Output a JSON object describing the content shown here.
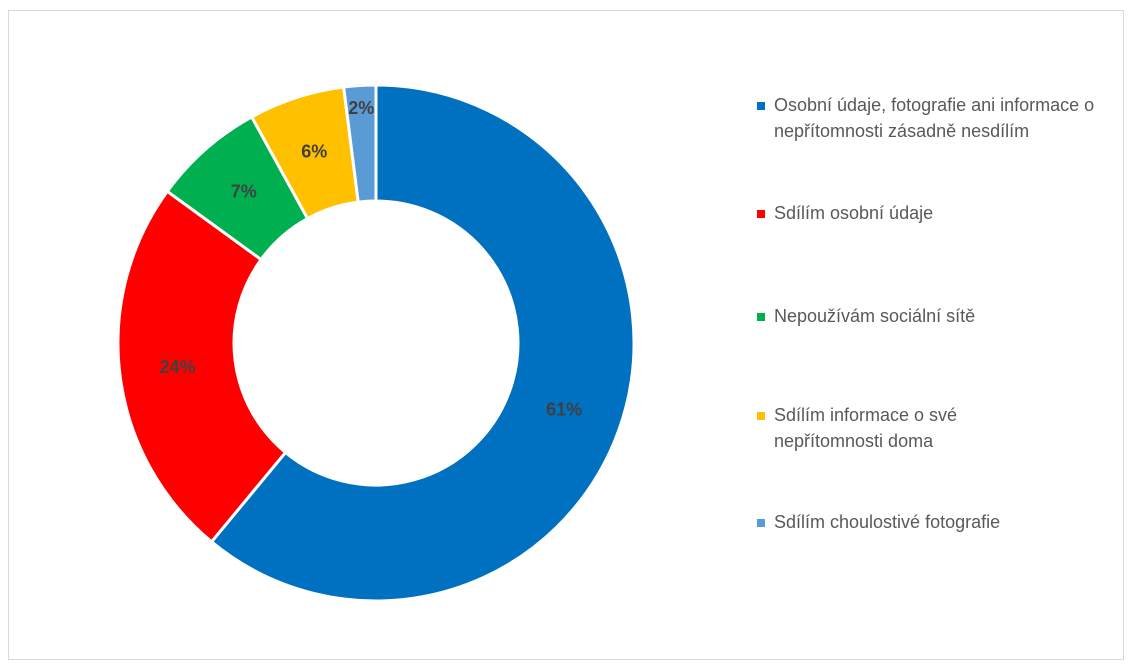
{
  "chart_data": {
    "type": "pie",
    "variant": "donut",
    "title": "",
    "slices": [
      {
        "label": "Osobní údaje, fotografie ani informace o nepřítomnosti zásadně nesdílím",
        "value": 61,
        "data_label": "61%",
        "color": "#0070C0"
      },
      {
        "label": "Sdílím osobní údaje",
        "value": 24,
        "data_label": "24%",
        "color": "#FF0000"
      },
      {
        "label": "Nepoužívám sociální sítě",
        "value": 7,
        "data_label": "7%",
        "color": "#00B050"
      },
      {
        "label": "Sdílím informace o své nepřítomnosti doma",
        "value": 6,
        "data_label": "6%",
        "color": "#FFC000"
      },
      {
        "label": "Sdílím choulostivé fotografie",
        "value": 2,
        "data_label": "2%",
        "color": "#5B9BD5"
      }
    ],
    "legend_position": "right",
    "grid": false
  }
}
